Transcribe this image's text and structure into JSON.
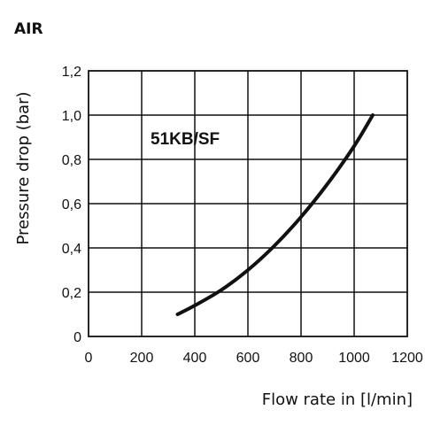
{
  "chart_data": {
    "type": "line",
    "title": "AIR",
    "annotation": "51KB/SF",
    "xlabel": "Flow rate in [l/min]",
    "ylabel": "Pressure drop (bar)",
    "xlim": [
      0,
      1200
    ],
    "ylim": [
      0,
      1.2
    ],
    "xticks": [
      "0",
      "200",
      "400",
      "600",
      "800",
      "1000",
      "1200"
    ],
    "yticks": [
      "0",
      "0,2",
      "0,4",
      "0,6",
      "0,8",
      "1,0",
      "1,2"
    ],
    "grid": true,
    "series": [
      {
        "x": [
          335,
          400,
          500,
          600,
          700,
          800,
          900,
          1000,
          1070
        ],
        "y": [
          0.1,
          0.14,
          0.21,
          0.3,
          0.41,
          0.54,
          0.69,
          0.86,
          1.0
        ]
      }
    ]
  }
}
